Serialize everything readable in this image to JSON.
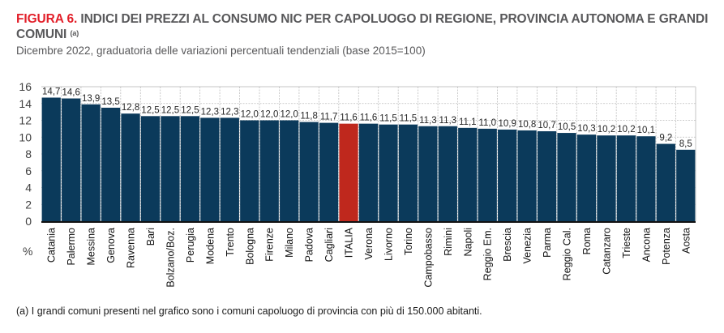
{
  "header": {
    "figure_label": "FIGURA 6.",
    "title": " INDICI DEI PREZZI AL CONSUMO NIC PER CAPOLUOGO DI REGIONE, PROVINCIA AUTONOMA E GRANDI COMUNI",
    "title_note": "(a)",
    "subtitle": "Dicembre 2022, graduatoria delle variazioni percentuali tendenziali (base 2015=100)"
  },
  "footnote": "(a)  I grandi comuni presenti nel grafico sono i comuni capoluogo di provincia con più di 150.000 abitanti.",
  "colors": {
    "bar": "#0b3a5b",
    "highlight": "#bf281d",
    "title_accent": "#e2202a",
    "grid": "#bdbdbd"
  },
  "chart_data": {
    "type": "bar",
    "title": "INDICI DEI PREZZI AL CONSUMO NIC PER CAPOLUOGO DI REGIONE, PROVINCIA AUTONOMA E GRANDI COMUNI",
    "xlabel": "",
    "ylabel": "%",
    "ylim": [
      0,
      16
    ],
    "yticks": [
      "0",
      "2",
      "4",
      "6",
      "8",
      "10",
      "12",
      "14",
      "16"
    ],
    "grid": true,
    "highlight_category": "ITALIA",
    "categories": [
      "Catania",
      "Palermo",
      "Messina",
      "Genova",
      "Ravenna",
      "Bari",
      "Bolzano/Boz.",
      "Perugia",
      "Modena",
      "Trento",
      "Bologna",
      "Firenze",
      "Milano",
      "Padova",
      "Cagliari",
      "ITALIA",
      "Verona",
      "Livorno",
      "Torino",
      "Campobasso",
      "Rimini",
      "Napoli",
      "Reggio Em.",
      "Brescia",
      "Venezia",
      "Parma",
      "Reggio Cal.",
      "Roma",
      "Catanzaro",
      "Trieste",
      "Ancona",
      "Potenza",
      "Aosta"
    ],
    "values": [
      14.7,
      14.6,
      13.9,
      13.5,
      12.8,
      12.5,
      12.5,
      12.5,
      12.3,
      12.3,
      12.0,
      12.0,
      12.0,
      11.8,
      11.7,
      11.6,
      11.6,
      11.5,
      11.5,
      11.3,
      11.3,
      11.1,
      11.0,
      10.9,
      10.8,
      10.7,
      10.5,
      10.3,
      10.2,
      10.2,
      10.1,
      9.2,
      8.5
    ],
    "data_labels": [
      "14,7",
      "14,6",
      "13,9",
      "13,5",
      "12,8",
      "12,5",
      "12,5",
      "12,5",
      "12,3",
      "12,3",
      "12,0",
      "12,0",
      "12,0",
      "11,8",
      "11,7",
      "11,6",
      "11,6",
      "11,5",
      "11,5",
      "11,3",
      "11,3",
      "11,1",
      "11,0",
      "10,9",
      "10,8",
      "10,7",
      "10,5",
      "10,3",
      "10,2",
      "10,2",
      "10,1",
      "9,2",
      "8,5"
    ]
  }
}
